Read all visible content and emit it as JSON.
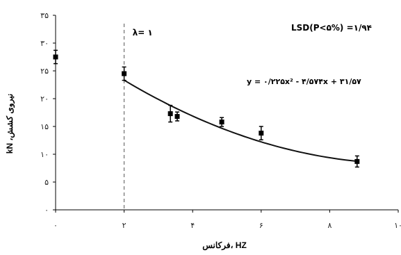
{
  "chart_data": {
    "type": "scatter",
    "title": "",
    "xlabel": "فرکانس، HZ",
    "ylabel": "kN ،نیروی کشش",
    "xlim": [
      0,
      10
    ],
    "ylim": [
      0,
      35
    ],
    "xticks": [
      0,
      2,
      4,
      6,
      8,
      10
    ],
    "yticks": [
      0,
      5,
      10,
      15,
      20,
      25,
      30,
      35
    ],
    "xtick_labels": [
      "۰",
      "۲",
      "۴",
      "۶",
      "۸",
      "۱۰"
    ],
    "ytick_labels": [
      "۰",
      "۵",
      "۱۰",
      "۱۵",
      "۲۰",
      "۲۵",
      "۳۰",
      "۳۵"
    ],
    "grid": false,
    "series": [
      {
        "x": [
          0,
          2,
          3.35,
          3.55,
          4.85,
          6,
          8.8
        ],
        "y": [
          27.5,
          24.5,
          17.3,
          16.8,
          15.8,
          13.8,
          8.7
        ],
        "err": [
          1.2,
          1.2,
          1.5,
          0.8,
          0.8,
          1.2,
          1.0
        ]
      }
    ],
    "fit": {
      "equation": "y = ۰/۲۲۵x² - ۴/۵۷۴x + ۳۱/۵۷",
      "a": 0.225,
      "b": -4.574,
      "c": 31.57,
      "x_range": [
        2,
        8.8
      ]
    },
    "vline": {
      "x": 2,
      "label": "λ= ۱"
    },
    "annotation": "LSD(P<۵%) =۱/۹۴"
  }
}
